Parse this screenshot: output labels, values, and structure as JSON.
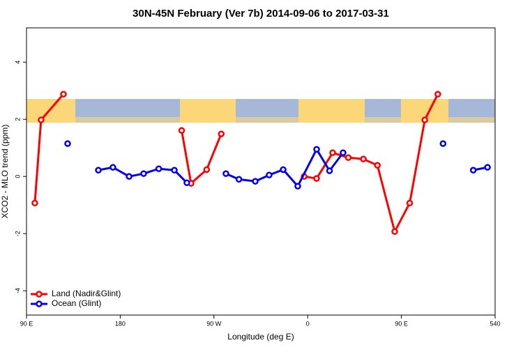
{
  "chart_data": {
    "type": "line",
    "title": "30N-45N February (Ver 7b)   2014-09-06 to 2017-03-31",
    "x_label": "Longitude (deg E)",
    "y_label": "XCO2 - MLO trend (ppm)",
    "xlim": [
      90,
      540
    ],
    "xticks": [
      {
        "value": 90,
        "label": "90 E"
      },
      180,
      {
        "value": 270,
        "label": "90 W"
      },
      {
        "value": 360,
        "label": "0"
      },
      {
        "value": 450,
        "label": "90 E"
      },
      540
    ],
    "ylim": [
      -4.85,
      5.2
    ],
    "yticks": [
      -4,
      -2,
      0,
      2,
      4
    ],
    "legend": "bottom-left",
    "series": [
      {
        "name": "Land (Nadir&Glint)",
        "color": "#ff0000",
        "x": [
          98,
          104,
          125.5,
          null,
          239,
          248,
          263,
          277,
          null,
          356.6,
          368.6,
          384,
          399,
          413.5,
          427,
          443.6,
          458,
          472.5,
          485
        ],
        "values": [
          -0.93,
          1.98,
          2.88,
          null,
          1.61,
          -0.24,
          0.24,
          1.49,
          null,
          0.0,
          -0.07,
          0.83,
          0.66,
          0.61,
          0.39,
          -1.93,
          -0.93,
          1.98,
          2.88
        ]
      },
      {
        "name": "Ocean (Glint)",
        "color": "#0000ee",
        "x": [
          129.5,
          null,
          159,
          173,
          188.5,
          202.5,
          217,
          232,
          244,
          null,
          281.5,
          294,
          309.7,
          323,
          336.5,
          350.5,
          368.6,
          381,
          394,
          null,
          490,
          null,
          519,
          532.7
        ],
        "values": [
          1.15,
          null,
          0.22,
          0.32,
          0.0,
          0.1,
          0.27,
          0.22,
          -0.22,
          null,
          0.1,
          -0.1,
          -0.17,
          0.05,
          0.24,
          -0.34,
          0.95,
          0.2,
          0.83,
          null,
          1.15,
          null,
          0.22,
          0.32
        ]
      }
    ]
  }
}
